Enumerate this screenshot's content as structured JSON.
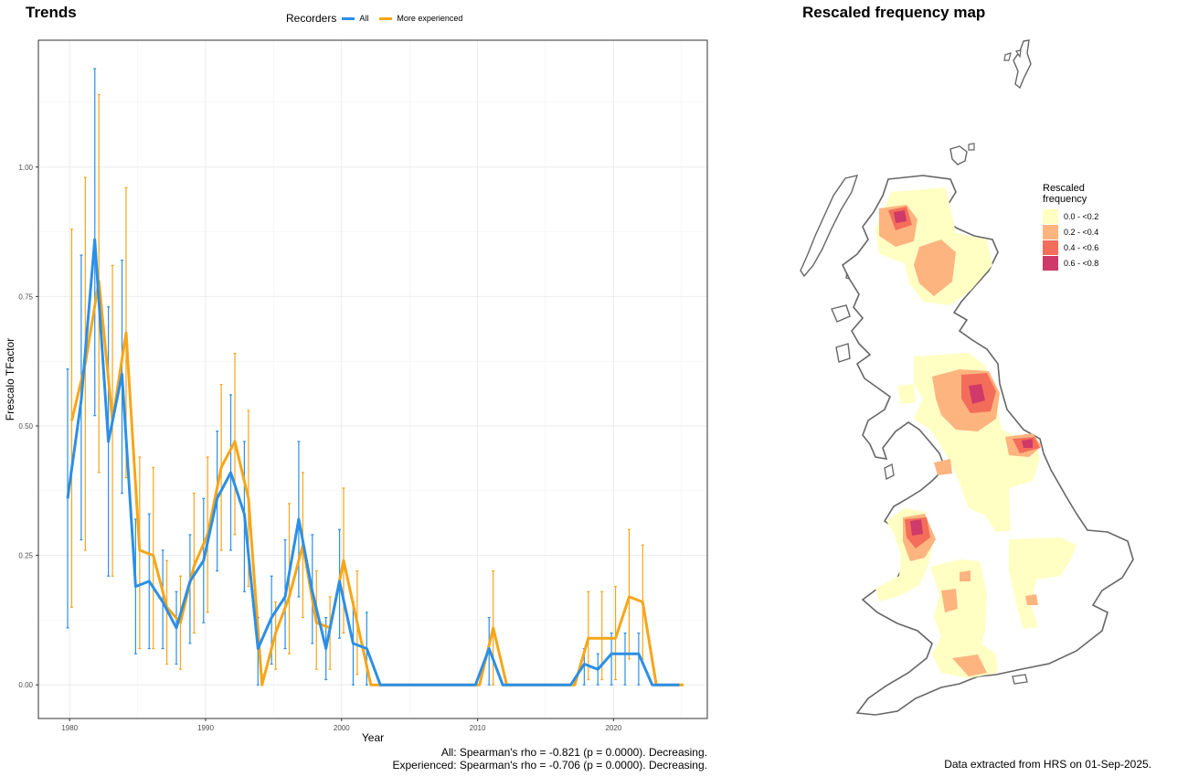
{
  "panels": {
    "trends_title": "Trends",
    "map_title": "Rescaled frequency map"
  },
  "legend": {
    "title": "Recorders",
    "all_label": "All",
    "experienced_label": "More experienced"
  },
  "stats": {
    "all": "All: Spearman's rho = -0.821 (p = 0.0000). Decreasing.",
    "experienced": "Experienced: Spearman's rho = -0.706 (p = 0.0000). Decreasing."
  },
  "footer": {
    "extract_note": "Data extracted from HRS on 01-Sep-2025."
  },
  "map_legend": {
    "title_line1": "Rescaled",
    "title_line2": "frequency",
    "items": [
      {
        "label": "0.0 - <0.2",
        "color": "#ffffc4"
      },
      {
        "label": "0.2 - <0.4",
        "color": "#fdb47f"
      },
      {
        "label": "0.4 - <0.6",
        "color": "#f46d5a"
      },
      {
        "label": "0.6 - <0.8",
        "color": "#cf3a6a"
      }
    ]
  },
  "chart_data": {
    "type": "line",
    "xlabel": "Year",
    "ylabel": "Frescalo TFactor",
    "xlim": [
      1977.7,
      2026.9
    ],
    "ylim": [
      -0.065,
      1.245
    ],
    "x_ticks": [
      1980,
      1990,
      2000,
      2010,
      2020
    ],
    "y_ticks": [
      0.0,
      0.25,
      0.5,
      0.75,
      1.0
    ],
    "y_tick_labels": [
      "0.00",
      "0.25",
      "0.50",
      "0.75",
      "1.00"
    ],
    "grid": true,
    "legend_position": "top",
    "colors": {
      "all": "#2b8fe6",
      "experienced": "#f6a61a"
    },
    "series": [
      {
        "name": "All",
        "key": "all",
        "x": [
          1980,
          1981,
          1982,
          1983,
          1984,
          1985,
          1986,
          1987,
          1988,
          1989,
          1990,
          1991,
          1992,
          1993,
          1994,
          1995,
          1996,
          1997,
          1998,
          1999,
          2000,
          2001,
          2002,
          2003,
          2004,
          2005,
          2006,
          2007,
          2008,
          2009,
          2010,
          2011,
          2012,
          2013,
          2014,
          2015,
          2016,
          2017,
          2018,
          2019,
          2020,
          2021,
          2022,
          2023,
          2024,
          2025
        ],
        "y": [
          0.36,
          0.55,
          0.86,
          0.47,
          0.6,
          0.19,
          0.2,
          0.16,
          0.11,
          0.2,
          0.24,
          0.36,
          0.41,
          0.33,
          0.07,
          0.13,
          0.17,
          0.32,
          0.18,
          0.07,
          0.2,
          0.08,
          0.07,
          0.0,
          0.0,
          0.0,
          0.0,
          0.0,
          0.0,
          0.0,
          0.0,
          0.07,
          0.0,
          0.0,
          0.0,
          0.0,
          0.0,
          0.0,
          0.04,
          0.03,
          0.06,
          0.06,
          0.06,
          0.0,
          0.0,
          0.0
        ],
        "lower": [
          0.11,
          0.28,
          0.52,
          0.21,
          0.37,
          0.06,
          0.07,
          0.07,
          0.04,
          0.08,
          0.12,
          0.22,
          0.26,
          0.18,
          0.0,
          0.04,
          0.07,
          0.17,
          0.08,
          0.01,
          0.09,
          0.0,
          0.0,
          0.0,
          0.0,
          0.0,
          0.0,
          0.0,
          0.0,
          0.0,
          0.0,
          0.0,
          0.0,
          0.0,
          0.0,
          0.0,
          0.0,
          0.0,
          0.0,
          0.0,
          0.0,
          0.0,
          0.0,
          0.0,
          0.0,
          0.0
        ],
        "upper": [
          0.61,
          0.83,
          1.19,
          0.73,
          0.82,
          0.32,
          0.33,
          0.26,
          0.18,
          0.29,
          0.36,
          0.49,
          0.56,
          0.47,
          0.13,
          0.21,
          0.28,
          0.47,
          0.29,
          0.13,
          0.3,
          0.16,
          0.14,
          0.0,
          0.0,
          0.0,
          0.0,
          0.0,
          0.0,
          0.0,
          0.0,
          0.13,
          0.0,
          0.0,
          0.0,
          0.0,
          0.0,
          0.0,
          0.07,
          0.06,
          0.1,
          0.1,
          0.1,
          0.0,
          0.0,
          0.0
        ]
      },
      {
        "name": "More experienced",
        "key": "experienced",
        "x": [
          1980,
          1981,
          1982,
          1983,
          1984,
          1985,
          1986,
          1987,
          1988,
          1989,
          1990,
          1991,
          1992,
          1993,
          1994,
          1995,
          1996,
          1997,
          1998,
          1999,
          2000,
          2001,
          2002,
          2003,
          2004,
          2005,
          2006,
          2007,
          2008,
          2009,
          2010,
          2011,
          2012,
          2013,
          2014,
          2015,
          2016,
          2017,
          2018,
          2019,
          2020,
          2021,
          2022,
          2023,
          2024,
          2025
        ],
        "y": [
          0.51,
          0.62,
          0.78,
          0.51,
          0.68,
          0.26,
          0.25,
          0.15,
          0.12,
          0.23,
          0.29,
          0.42,
          0.47,
          0.36,
          0.0,
          0.1,
          0.17,
          0.27,
          0.12,
          0.11,
          0.24,
          0.12,
          0.0,
          0.0,
          0.0,
          0.0,
          0.0,
          0.0,
          0.0,
          0.0,
          0.0,
          0.11,
          0.0,
          0.0,
          0.0,
          0.0,
          0.0,
          0.0,
          0.09,
          0.09,
          0.09,
          0.17,
          0.16,
          0.0,
          0.0,
          0.0
        ],
        "lower": [
          0.15,
          0.26,
          0.41,
          0.21,
          0.4,
          0.07,
          0.07,
          0.04,
          0.03,
          0.1,
          0.14,
          0.26,
          0.29,
          0.19,
          0.0,
          0.03,
          0.06,
          0.13,
          0.03,
          0.03,
          0.1,
          0.02,
          0.0,
          0.0,
          0.0,
          0.0,
          0.0,
          0.0,
          0.0,
          0.0,
          0.0,
          0.0,
          0.0,
          0.0,
          0.0,
          0.0,
          0.0,
          0.0,
          0.01,
          0.01,
          0.01,
          0.05,
          0.05,
          0.0,
          0.0,
          0.0
        ],
        "upper": [
          0.88,
          0.98,
          1.14,
          0.81,
          0.96,
          0.44,
          0.42,
          0.24,
          0.21,
          0.37,
          0.44,
          0.58,
          0.64,
          0.53,
          0.02,
          0.16,
          0.35,
          0.41,
          0.22,
          0.17,
          0.38,
          0.22,
          0.0,
          0.0,
          0.0,
          0.0,
          0.0,
          0.0,
          0.0,
          0.0,
          0.0,
          0.22,
          0.0,
          0.0,
          0.0,
          0.0,
          0.0,
          0.0,
          0.18,
          0.18,
          0.19,
          0.3,
          0.27,
          0.0,
          0.0,
          0.0
        ]
      }
    ]
  }
}
